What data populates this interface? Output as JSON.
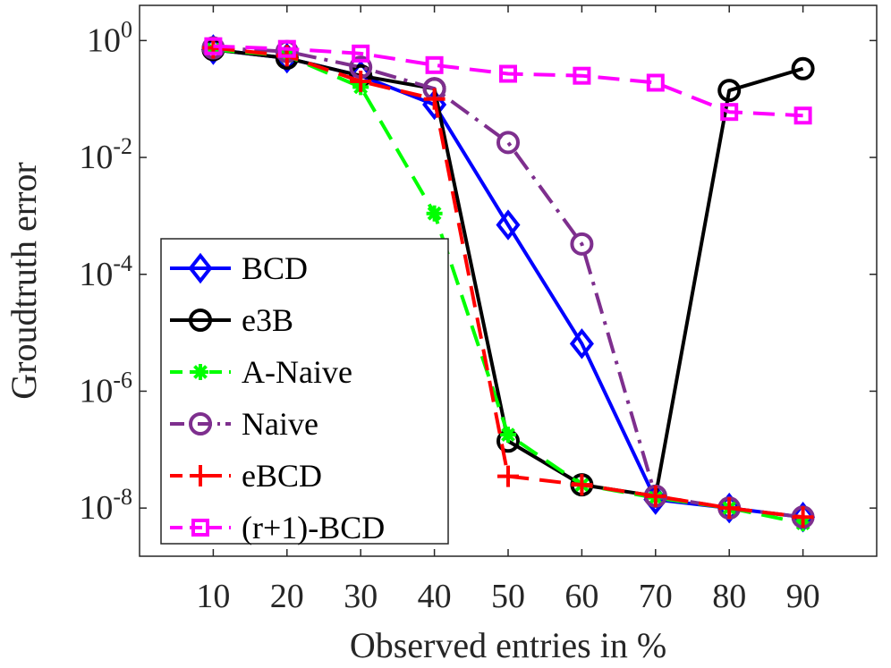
{
  "chart_data": {
    "type": "line",
    "xlabel": "Observed entries in %",
    "ylabel": "Groudtruth error",
    "yscale": "log",
    "xlim": [
      0,
      100
    ],
    "ylim": [
      1.5e-09,
      4
    ],
    "x": [
      10,
      20,
      30,
      40,
      50,
      60,
      70,
      80,
      90
    ],
    "x_ticks": [
      10,
      20,
      30,
      40,
      50,
      60,
      70,
      80,
      90
    ],
    "y_ticks": [
      {
        "value": 1e-08,
        "base": "10",
        "exp": "-8"
      },
      {
        "value": 1e-06,
        "base": "10",
        "exp": "-6"
      },
      {
        "value": 0.0001,
        "base": "10",
        "exp": "-4"
      },
      {
        "value": 0.01,
        "base": "10",
        "exp": "-2"
      },
      {
        "value": 1,
        "base": "10",
        "exp": "0"
      }
    ],
    "grid": false,
    "legend_position": "bottom-left",
    "series": [
      {
        "name": "BCD",
        "color": "#0000ff",
        "dash": "solid",
        "marker": "diamond",
        "values": [
          0.7,
          0.5,
          0.25,
          0.08,
          0.0007,
          6.5e-06,
          1.4e-08,
          1e-08,
          7e-09
        ]
      },
      {
        "name": "e3B",
        "color": "#000000",
        "dash": "solid",
        "marker": "circle",
        "values": [
          0.7,
          0.5,
          0.25,
          0.15,
          1.4e-07,
          2.5e-08,
          1.6e-08,
          0.14,
          0.33
        ]
      },
      {
        "name": "A-Naive",
        "color": "#00ff00",
        "dash": "dashed",
        "marker": "asterisk",
        "values": [
          0.7,
          0.55,
          0.16,
          0.0011,
          1.8e-07,
          2.5e-08,
          1.5e-08,
          1e-08,
          5.5e-09
        ]
      },
      {
        "name": "Naive",
        "color": "#7e2f8e",
        "dash": "dashdot",
        "marker": "circle",
        "values": [
          0.75,
          0.65,
          0.35,
          0.15,
          0.018,
          0.00033,
          1.6e-08,
          1e-08,
          7e-09
        ]
      },
      {
        "name": "eBCD",
        "color": "#ff0000",
        "dash": "dashed",
        "marker": "plus",
        "values": [
          0.75,
          0.55,
          0.2,
          0.1,
          3.5e-08,
          2.5e-08,
          1.6e-08,
          1e-08,
          7e-09
        ]
      },
      {
        "name": "(r+1)-BCD",
        "color": "#ff00ff",
        "dash": "dashed",
        "marker": "square",
        "values": [
          0.8,
          0.72,
          0.6,
          0.38,
          0.27,
          0.25,
          0.19,
          0.06,
          0.052
        ]
      }
    ]
  }
}
